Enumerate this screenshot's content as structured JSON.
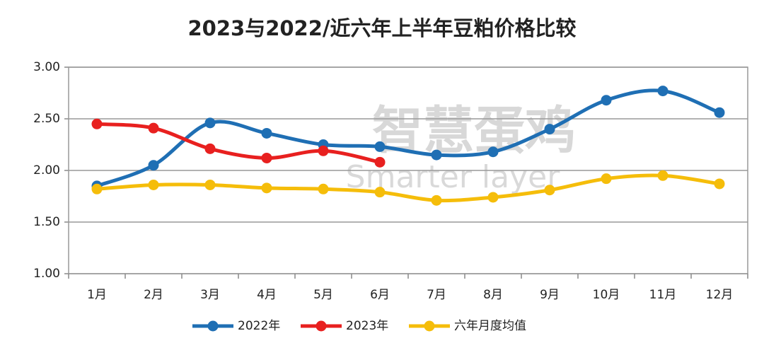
{
  "chart_data": {
    "type": "line",
    "title": "2023与2022/近六年上半年豆粕价格比较",
    "watermark": [
      "智慧蛋鸡",
      "Smarter layer"
    ],
    "categories": [
      "1月",
      "2月",
      "3月",
      "4月",
      "5月",
      "6月",
      "7月",
      "8月",
      "9月",
      "10月",
      "11月",
      "12月"
    ],
    "series": [
      {
        "name": "2022年",
        "color": "#1f6fb4",
        "values": [
          1.85,
          2.05,
          2.46,
          2.36,
          2.25,
          2.23,
          2.15,
          2.18,
          2.4,
          2.68,
          2.77,
          2.56
        ]
      },
      {
        "name": "2023年",
        "color": "#e8201f",
        "values": [
          2.45,
          2.41,
          2.21,
          2.12,
          2.19,
          2.08,
          null,
          null,
          null,
          null,
          null,
          null
        ]
      },
      {
        "name": "六年月度均值",
        "color": "#f5bd0a",
        "values": [
          1.82,
          1.86,
          1.86,
          1.83,
          1.82,
          1.79,
          1.71,
          1.74,
          1.81,
          1.92,
          1.95,
          1.87
        ]
      }
    ],
    "ylim": [
      1,
      3
    ],
    "yticks": [
      {
        "value": 1,
        "label": "1.00"
      },
      {
        "value": 1.5,
        "label": "1.50"
      },
      {
        "value": 2,
        "label": "2.00"
      },
      {
        "value": 2.5,
        "label": "2.50"
      },
      {
        "value": 3,
        "label": "3.00"
      }
    ],
    "grid": true,
    "legend": "bottom",
    "smooth": true
  }
}
